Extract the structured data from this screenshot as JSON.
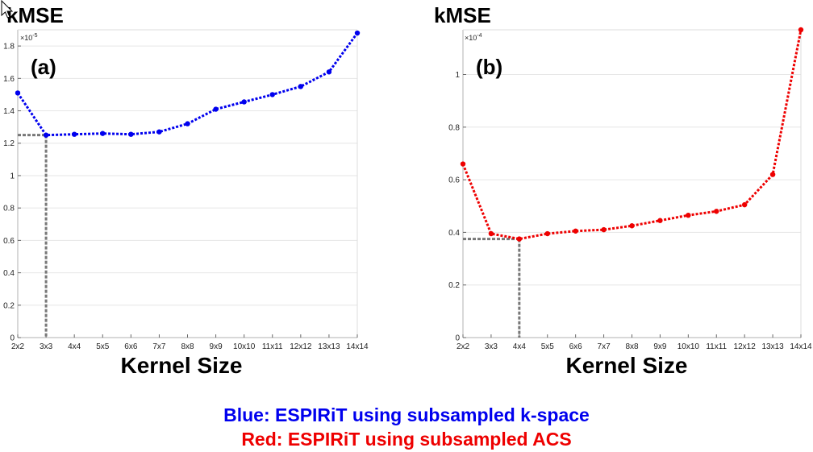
{
  "colors": {
    "blue": "#0000ee",
    "red": "#ee0000",
    "ref_line": "#777777",
    "grid": "#e6e6e6",
    "axis": "#b0b0b0"
  },
  "chart_data": [
    {
      "type": "line",
      "panel_label": "(a)",
      "ylabel": "kMSE",
      "xlabel": "Kernel Size",
      "exponent_base": "×10",
      "exponent_power": "-5",
      "categories": [
        "2x2",
        "3x3",
        "4x4",
        "5x5",
        "6x6",
        "7x7",
        "8x8",
        "9x9",
        "10x10",
        "11x11",
        "12x12",
        "13x13",
        "14x14"
      ],
      "ylim": [
        0,
        1.9
      ],
      "yticks": [
        0,
        0.2,
        0.4,
        0.6,
        0.8,
        1,
        1.2,
        1.4,
        1.6,
        1.8
      ],
      "ytick_labels": [
        "0",
        "0.2",
        "0.4",
        "0.6",
        "0.8",
        "1",
        "1.2",
        "1.4",
        "1.6",
        "1.8"
      ],
      "grid": true,
      "series": [
        {
          "name": "ESPIRiT using subsampled k-space",
          "color": "#0000ee",
          "values": [
            1.51,
            1.25,
            1.255,
            1.26,
            1.255,
            1.27,
            1.32,
            1.41,
            1.455,
            1.5,
            1.55,
            1.64,
            1.88
          ]
        }
      ],
      "min_marker": {
        "index": 1,
        "value": 1.25
      }
    },
    {
      "type": "line",
      "panel_label": "(b)",
      "ylabel": "kMSE",
      "xlabel": "Kernel Size",
      "exponent_base": "×10",
      "exponent_power": "-4",
      "categories": [
        "2x2",
        "3x3",
        "4x4",
        "5x5",
        "6x6",
        "7x7",
        "8x8",
        "9x9",
        "10x10",
        "11x11",
        "12x12",
        "13x13",
        "14x14"
      ],
      "ylim": [
        0,
        1.17
      ],
      "yticks": [
        0,
        0.2,
        0.4,
        0.6,
        0.8,
        1
      ],
      "ytick_labels": [
        "0",
        "0.2",
        "0.4",
        "0.6",
        "0.8",
        "1"
      ],
      "grid": true,
      "series": [
        {
          "name": "ESPIRiT using subsampled ACS",
          "color": "#ee0000",
          "values": [
            0.66,
            0.395,
            0.375,
            0.395,
            0.405,
            0.41,
            0.425,
            0.445,
            0.465,
            0.48,
            0.505,
            0.62,
            1.17
          ]
        }
      ],
      "min_marker": {
        "index": 2,
        "value": 0.375
      }
    }
  ],
  "legend": {
    "blue_text": "Blue: ESPIRiT using subsampled k-space",
    "red_text": "Red: ESPIRiT using subsampled ACS"
  }
}
